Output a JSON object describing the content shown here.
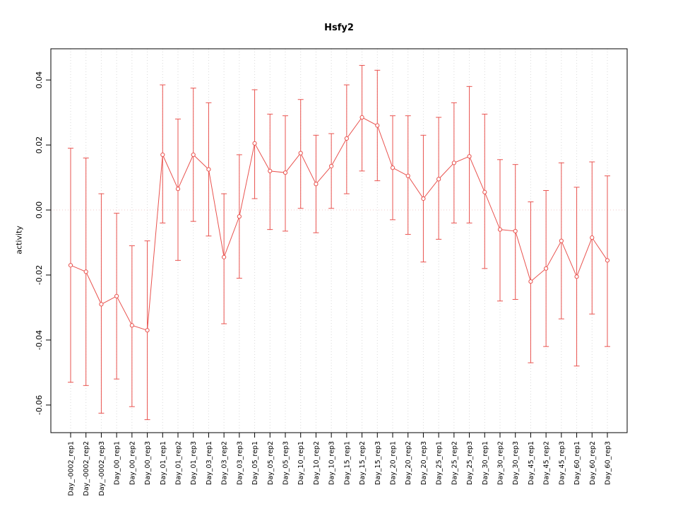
{
  "chart_data": {
    "type": "line",
    "title": "Hsfy2",
    "xlabel": "",
    "ylabel": "activity",
    "legend": "none",
    "grid": "dotted vertical gridline per category; dotted horizontal line at y=0",
    "marker": "open-circle",
    "error_bars": true,
    "ylim": [
      -0.0685,
      0.0496
    ],
    "ytick_values": [
      0.04,
      0.02,
      0.0,
      -0.02,
      -0.04,
      -0.06
    ],
    "ytick_labels": [
      "0.04",
      "0.02",
      "0.00",
      "-0.02",
      "-0.04",
      "-0.06"
    ],
    "colors": {
      "series": "#e9534f",
      "grid": "#d9d9d9",
      "zero_line": "#f0c8c8",
      "axis": "#000000"
    },
    "categories": [
      "Day_-0002_rep1",
      "Day_-0002_rep2",
      "Day_-0002_rep3",
      "Day_00_rep1",
      "Day_00_rep2",
      "Day_00_rep3",
      "Day_01_rep1",
      "Day_01_rep2",
      "Day_01_rep3",
      "Day_03_rep1",
      "Day_03_rep2",
      "Day_03_rep3",
      "Day_05_rep1",
      "Day_05_rep2",
      "Day_05_rep3",
      "Day_10_rep1",
      "Day_10_rep2",
      "Day_10_rep3",
      "Day_15_rep1",
      "Day_15_rep2",
      "Day_15_rep3",
      "Day_20_rep1",
      "Day_20_rep2",
      "Day_20_rep3",
      "Day_25_rep1",
      "Day_25_rep2",
      "Day_25_rep3",
      "Day_30_rep1",
      "Day_30_rep2",
      "Day_30_rep3",
      "Day_45_rep1",
      "Day_45_rep2",
      "Day_45_rep3",
      "Day_60_rep1",
      "Day_60_rep2",
      "Day_60_rep3"
    ],
    "values": [
      -0.017,
      -0.019,
      -0.029,
      -0.0265,
      -0.0355,
      -0.037,
      0.017,
      0.0065,
      0.017,
      0.0125,
      -0.0145,
      -0.002,
      0.0205,
      0.012,
      0.0115,
      0.0175,
      0.008,
      0.0135,
      0.022,
      0.0285,
      0.026,
      0.013,
      0.0105,
      0.0035,
      0.0095,
      0.0145,
      0.0165,
      0.0055,
      -0.006,
      -0.0065,
      -0.022,
      -0.018,
      -0.0095,
      -0.0205,
      -0.0085,
      -0.0155
    ],
    "upper": [
      0.019,
      0.016,
      0.005,
      -0.001,
      -0.011,
      -0.0095,
      0.0385,
      0.028,
      0.0375,
      0.033,
      0.005,
      0.017,
      0.037,
      0.0295,
      0.029,
      0.034,
      0.023,
      0.0235,
      0.0385,
      0.0445,
      0.043,
      0.029,
      0.029,
      0.023,
      0.0285,
      0.033,
      0.038,
      0.0295,
      0.0155,
      0.014,
      0.0025,
      0.006,
      0.0145,
      0.007,
      0.0148,
      0.0105
    ],
    "lower": [
      -0.053,
      -0.054,
      -0.0625,
      -0.052,
      -0.0605,
      -0.0645,
      -0.004,
      -0.0155,
      -0.0035,
      -0.008,
      -0.035,
      -0.021,
      0.0035,
      -0.006,
      -0.0065,
      0.0005,
      -0.007,
      0.0005,
      0.005,
      0.012,
      0.009,
      -0.003,
      -0.0075,
      -0.016,
      -0.009,
      -0.004,
      -0.004,
      -0.018,
      -0.028,
      -0.0275,
      -0.047,
      -0.042,
      -0.0335,
      -0.048,
      -0.032,
      -0.042
    ]
  }
}
